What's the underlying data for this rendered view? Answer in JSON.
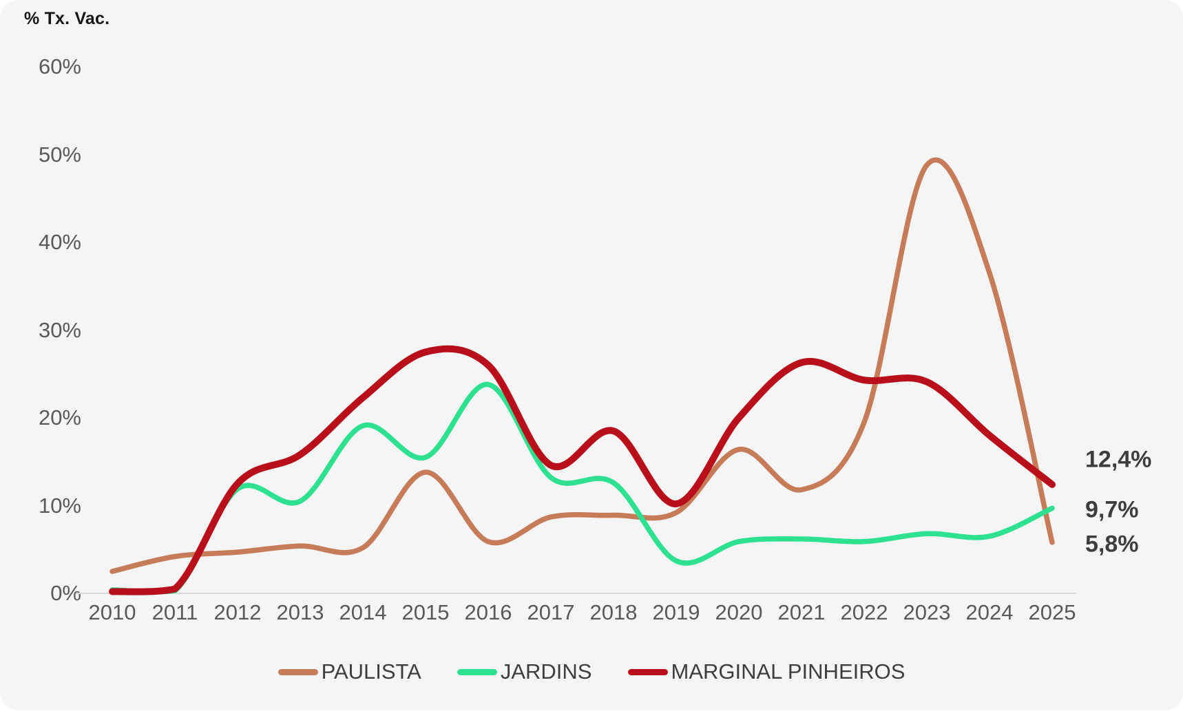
{
  "page": {
    "background": "#ffffff",
    "card_background": "#f5f5f6",
    "baseline_color": "#d9d9d9",
    "tick_color": "#595959",
    "text_color": "#3d3d3d"
  },
  "chart": {
    "axis_title": "% Tx. Vac.",
    "y_ticks": [
      {
        "label": "60%",
        "value": 60
      },
      {
        "label": "50%",
        "value": 50
      },
      {
        "label": "40%",
        "value": 40
      },
      {
        "label": "30%",
        "value": 30
      },
      {
        "label": "20%",
        "value": 20
      },
      {
        "label": "10%",
        "value": 10
      },
      {
        "label": "0%",
        "value": 0
      }
    ],
    "end_labels": {
      "marginal_pinheiros": "12,4%",
      "jardins": "9,7%",
      "paulista": "5,8%"
    }
  },
  "legend": {
    "items": [
      {
        "label": "PAULISTA",
        "color": "#c77c59"
      },
      {
        "label": "JARDINS",
        "color": "#2ee191"
      },
      {
        "label": "MARGINAL PINHEIROS",
        "color": "#b80f1b"
      }
    ]
  },
  "chart_data": {
    "type": "line",
    "title": "",
    "ylabel": "% Tx. Vac.",
    "xlabel": "",
    "ylim": [
      0,
      60
    ],
    "grid": false,
    "legend_position": "bottom",
    "line_style": "smooth",
    "categories": [
      "2010",
      "2011",
      "2012",
      "2013",
      "2014",
      "2015",
      "2016",
      "2017",
      "2018",
      "2019",
      "2020",
      "2021",
      "2022",
      "2023",
      "2024",
      "2025"
    ],
    "series": [
      {
        "name": "PAULISTA",
        "color": "#c77c59",
        "stroke_width": 7.5,
        "end_label": "5,8%",
        "values": [
          2.5,
          4.2,
          4.7,
          5.4,
          5.2,
          13.8,
          5.9,
          8.7,
          8.9,
          9.2,
          16.4,
          11.8,
          19.5,
          48.8,
          36.5,
          5.8
        ]
      },
      {
        "name": "JARDINS",
        "color": "#2ee191",
        "stroke_width": 7.5,
        "end_label": "9,7%",
        "values": [
          0.4,
          0.3,
          11.9,
          10.5,
          19.1,
          15.5,
          23.8,
          13.2,
          12.6,
          3.7,
          5.9,
          6.2,
          5.9,
          6.8,
          6.5,
          9.7
        ]
      },
      {
        "name": "MARGINAL PINHEIROS",
        "color": "#b80f1b",
        "stroke_width": 10,
        "end_label": "12,4%",
        "values": [
          0.2,
          0.5,
          12.5,
          15.8,
          22.3,
          27.5,
          26.0,
          14.6,
          18.5,
          10.2,
          20.0,
          26.3,
          24.3,
          24.1,
          18.0,
          12.4
        ]
      }
    ]
  }
}
